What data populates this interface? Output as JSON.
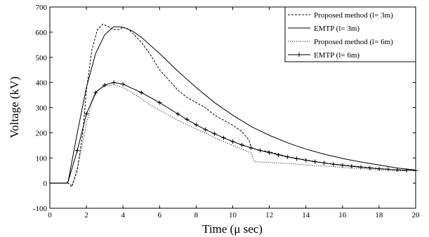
{
  "chart_data": {
    "type": "line",
    "title": "",
    "xlabel": "Time (μ sec)",
    "ylabel": "Voltage (kV)",
    "xlim": [
      0,
      20
    ],
    "ylim": [
      -100,
      700
    ],
    "xticks": [
      0,
      2,
      4,
      6,
      8,
      10,
      12,
      14,
      16,
      18,
      20
    ],
    "yticks": [
      -100,
      0,
      100,
      200,
      300,
      400,
      500,
      600,
      700
    ],
    "grid": false,
    "legend_position": "top-right",
    "series": [
      {
        "name": "Proposed method (l= 3m)",
        "style": "dashed",
        "color": "#000000",
        "x": [
          0,
          0.8,
          1.0,
          1.2,
          1.5,
          1.8,
          2.0,
          2.3,
          2.6,
          2.9,
          3.2,
          3.5,
          3.8,
          4.0,
          4.3,
          4.6,
          5.0,
          5.5,
          6.0,
          6.5,
          7.0,
          7.5,
          8.0,
          8.5,
          9.0,
          9.5,
          10.0,
          10.5,
          10.9,
          11.0,
          11.5,
          12.0,
          12.5,
          13.0,
          14.0,
          15.0,
          16.0,
          17.0,
          18.0,
          19.0,
          20.0
        ],
        "y": [
          0,
          0,
          0,
          -15,
          50,
          200,
          370,
          530,
          610,
          632,
          622,
          610,
          610,
          620,
          612,
          590,
          560,
          510,
          450,
          410,
          370,
          340,
          320,
          300,
          270,
          250,
          230,
          205,
          170,
          140,
          130,
          125,
          115,
          105,
          92,
          80,
          72,
          65,
          58,
          52,
          50
        ]
      },
      {
        "name": "EMTP (l= 3m)",
        "style": "solid",
        "color": "#000000",
        "x": [
          0,
          0.9,
          1.0,
          1.5,
          2.0,
          2.5,
          3.0,
          3.5,
          4.0,
          4.5,
          5.0,
          6.0,
          7.0,
          8.0,
          9.0,
          10.0,
          11.0,
          12.0,
          13.0,
          14.0,
          15.0,
          16.0,
          17.0,
          18.0,
          19.0,
          20.0
        ],
        "y": [
          0,
          0,
          5,
          200,
          380,
          515,
          590,
          622,
          620,
          605,
          580,
          515,
          445,
          380,
          320,
          270,
          225,
          190,
          160,
          135,
          115,
          98,
          84,
          72,
          60,
          52
        ]
      },
      {
        "name": "Proposed method (l= 6m)",
        "style": "dotted",
        "color": "#000000",
        "x": [
          0,
          0.8,
          1.0,
          1.2,
          1.5,
          1.8,
          2.0,
          2.3,
          2.6,
          3.0,
          3.5,
          4.0,
          4.5,
          5.0,
          5.5,
          6.0,
          6.5,
          7.0,
          7.5,
          8.0,
          8.5,
          9.0,
          9.5,
          10.0,
          10.5,
          11.0,
          11.2,
          12.0,
          13.0,
          14.0,
          15.0,
          16.0,
          17.0,
          18.0,
          19.0,
          20.0
        ],
        "y": [
          0,
          0,
          0,
          -10,
          60,
          160,
          240,
          320,
          370,
          385,
          390,
          380,
          360,
          335,
          310,
          290,
          270,
          250,
          232,
          215,
          200,
          180,
          165,
          150,
          135,
          120,
          85,
          82,
          78,
          72,
          68,
          62,
          58,
          52,
          48,
          52
        ]
      },
      {
        "name": "EMTP (l= 6m)",
        "style": "solid-plus",
        "color": "#000000",
        "x": [
          0,
          0.9,
          1.0,
          1.5,
          2.0,
          2.5,
          3.0,
          3.5,
          4.0,
          5.0,
          6.0,
          7.0,
          7.5,
          8.0,
          8.5,
          9.0,
          9.5,
          10.0,
          10.5,
          11.0,
          11.5,
          12.0,
          12.5,
          13.0,
          13.5,
          14.0,
          14.5,
          15.0,
          15.5,
          16.0,
          16.5,
          17.0,
          17.5,
          18.0,
          18.5,
          19.0,
          19.5,
          20.0
        ],
        "y": [
          0,
          0,
          5,
          130,
          275,
          360,
          390,
          400,
          393,
          360,
          320,
          275,
          253,
          232,
          213,
          196,
          180,
          165,
          152,
          140,
          130,
          121,
          112,
          104,
          97,
          91,
          85,
          80,
          75,
          71,
          67,
          63,
          60,
          57,
          55,
          53,
          51,
          50
        ]
      }
    ]
  }
}
